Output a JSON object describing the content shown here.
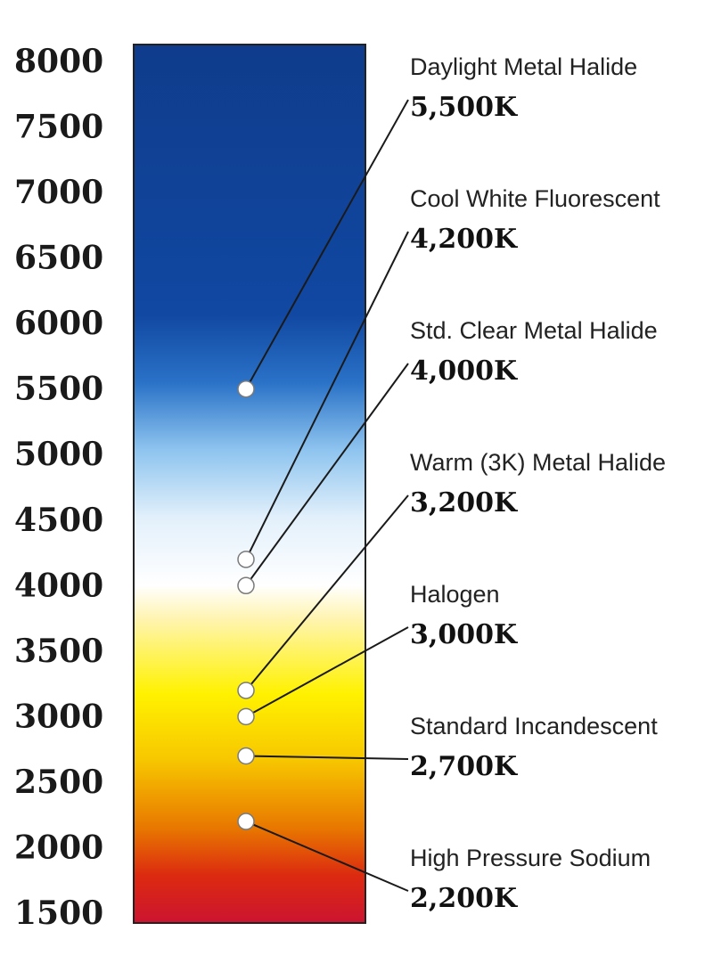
{
  "chart_data": {
    "type": "color_temperature_scale",
    "ylim": [
      1500,
      8000
    ],
    "y_ticks": [
      "8000",
      "7500",
      "7000",
      "6500",
      "6000",
      "5500",
      "5000",
      "4500",
      "4000",
      "3500",
      "3000",
      "2500",
      "2000",
      "1500"
    ],
    "gradient_stops": [
      {
        "value": 8000,
        "color": "#0f3c8c"
      },
      {
        "value": 6000,
        "color": "#1148a2"
      },
      {
        "value": 5500,
        "color": "#2a72c7"
      },
      {
        "value": 5000,
        "color": "#8ec4ef"
      },
      {
        "value": 4500,
        "color": "#e2f0fb"
      },
      {
        "value": 4000,
        "color": "#ffffff"
      },
      {
        "value": 3750,
        "color": "#fff4b0"
      },
      {
        "value": 3200,
        "color": "#fff200"
      },
      {
        "value": 2700,
        "color": "#f7c600"
      },
      {
        "value": 2200,
        "color": "#e87700"
      },
      {
        "value": 1850,
        "color": "#dc2a10"
      },
      {
        "value": 1500,
        "color": "#cc1430"
      }
    ],
    "lamps": [
      {
        "name": "Daylight Metal Halide",
        "label": "5,500K",
        "value": 5500
      },
      {
        "name": "Cool White Fluorescent",
        "label": "4,200K",
        "value": 4200
      },
      {
        "name": "Std. Clear Metal Halide",
        "label": "4,000K",
        "value": 4000
      },
      {
        "name": "Warm (3K) Metal Halide",
        "label": "3,200K",
        "value": 3200
      },
      {
        "name": "Halogen",
        "label": "3,000K",
        "value": 3000
      },
      {
        "name": "Standard Incandescent",
        "label": "2,700K",
        "value": 2700
      },
      {
        "name": "High Pressure Sodium",
        "label": "2,200K",
        "value": 2200
      }
    ]
  }
}
